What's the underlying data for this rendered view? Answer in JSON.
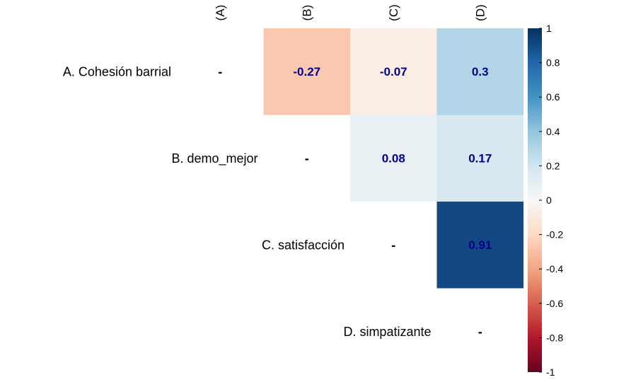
{
  "chart_data": {
    "type": "heatmap",
    "variables": [
      "A. Cohesión barrial",
      "B. demo_mejor",
      "C. satisfacción",
      "D. simpatizante"
    ],
    "column_labels": [
      "(A)",
      "(B)",
      "(C)",
      "(D)"
    ],
    "diagonal_symbol": "-",
    "cells": [
      {
        "row": 0,
        "col": 1,
        "value": -0.27,
        "label": "-0.27"
      },
      {
        "row": 0,
        "col": 2,
        "value": -0.07,
        "label": "-0.07"
      },
      {
        "row": 0,
        "col": 3,
        "value": 0.3,
        "label": "0.3"
      },
      {
        "row": 1,
        "col": 2,
        "value": 0.08,
        "label": "0.08"
      },
      {
        "row": 1,
        "col": 3,
        "value": 0.17,
        "label": "0.17"
      },
      {
        "row": 2,
        "col": 3,
        "value": 0.91,
        "label": "0.91"
      }
    ],
    "colorbar": {
      "range": [
        -1,
        1
      ],
      "ticks": [
        1,
        0.8,
        0.6,
        0.4,
        0.2,
        0,
        -0.2,
        -0.4,
        -0.6,
        -0.8,
        -1
      ],
      "tick_labels": [
        "1",
        "0.8",
        "0.6",
        "0.4",
        "0.2",
        "0",
        "-0.2",
        "-0.4",
        "-0.6",
        "-0.8",
        "-1"
      ],
      "colors": {
        "negative": "#67001f",
        "neutral": "#f7f7f7",
        "positive": "#053061"
      }
    },
    "title": "",
    "xlabel": "",
    "ylabel": "",
    "value_label_color": "#00008b"
  }
}
